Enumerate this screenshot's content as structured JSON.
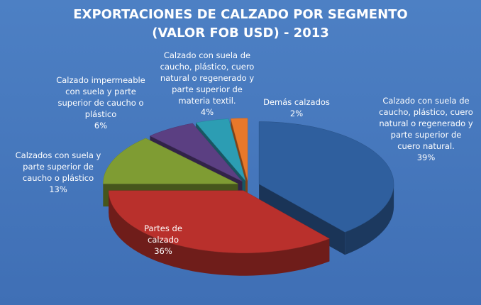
{
  "chart_data": {
    "type": "pie",
    "title": "EXPORTACIONES DE CALZADO POR SEGMENTO",
    "subtitle": "(VALOR FOB USD) - 2013",
    "categories": [
      "Calzado con suela de caucho, plástico, cuero natural o regenerado y parte superior de cuero natural.",
      "Partes de calzado",
      "Calzados con suela y parte superior de caucho o plástico",
      "Calzado impermeable con suela y parte superior de caucho o plástico",
      "Calzado con suela de caucho, plástico, cuero natural o regenerado y parte superior de materia textil.",
      "Demás calzados"
    ],
    "values": [
      39,
      36,
      13,
      6,
      4,
      2
    ],
    "value_labels": [
      "39%",
      "36%",
      "13%",
      "6%",
      "4%",
      "2%"
    ],
    "colors": [
      "#2f5f9e",
      "#b9302c",
      "#7f9c33",
      "#5b3f82",
      "#2c9db3",
      "#e8782a"
    ]
  }
}
